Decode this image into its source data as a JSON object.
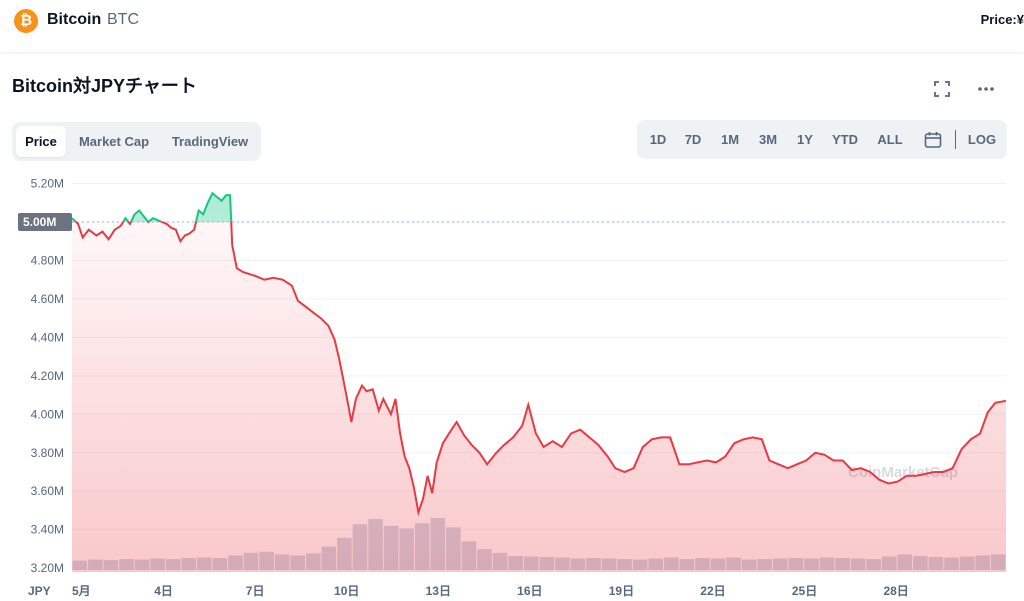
{
  "header": {
    "coin_logo_char": "₿",
    "coin_name": "Bitcoin",
    "coin_symbol": "BTC",
    "price_label": "Price:¥"
  },
  "chart_header": {
    "title": "Bitcoin対JPYチャート"
  },
  "view_tabs": [
    {
      "label": "Price",
      "active": true
    },
    {
      "label": "Market Cap",
      "active": false
    },
    {
      "label": "TradingView",
      "active": false
    }
  ],
  "ranges": [
    "1D",
    "7D",
    "1M",
    "3M",
    "1Y",
    "YTD",
    "ALL",
    "LOG"
  ],
  "colors": {
    "up": "#16c784",
    "down": "#ea3943",
    "baseline_bg": "#6b7280",
    "volume": "#cfd6e4",
    "grid": "#eff2f5"
  },
  "chart_data": {
    "type": "area",
    "currency": "JPY",
    "baseline": 5000000,
    "baseline_label": "5.00M",
    "y_ticks": [
      "5.20M",
      "5.00M",
      "4.80M",
      "4.60M",
      "4.40M",
      "4.20M",
      "4.00M",
      "3.80M",
      "3.60M",
      "3.40M",
      "3.20M"
    ],
    "ylim": [
      3180000,
      5260000
    ],
    "x_ticks": [
      "5月",
      "4日",
      "7日",
      "10日",
      "13日",
      "16日",
      "19日",
      "22日",
      "25日",
      "28日"
    ],
    "x_tick_days": [
      1,
      4,
      7,
      10,
      13,
      16,
      19,
      22,
      25,
      28
    ],
    "xlim": [
      1,
      31.6
    ],
    "watermark": "CoinMarketCap",
    "price_series": [
      [
        1.0,
        5020000
      ],
      [
        1.2,
        4990000
      ],
      [
        1.35,
        4920000
      ],
      [
        1.55,
        4960000
      ],
      [
        1.8,
        4930000
      ],
      [
        2.0,
        4950000
      ],
      [
        2.2,
        4910000
      ],
      [
        2.4,
        4960000
      ],
      [
        2.6,
        4980000
      ],
      [
        2.75,
        5020000
      ],
      [
        2.9,
        4990000
      ],
      [
        3.05,
        5040000
      ],
      [
        3.2,
        5060000
      ],
      [
        3.35,
        5030000
      ],
      [
        3.5,
        5000000
      ],
      [
        3.65,
        5020000
      ],
      [
        3.8,
        5010000
      ],
      [
        3.95,
        5000000
      ],
      [
        4.1,
        4990000
      ],
      [
        4.25,
        4970000
      ],
      [
        4.4,
        4960000
      ],
      [
        4.55,
        4900000
      ],
      [
        4.7,
        4930000
      ],
      [
        4.85,
        4940000
      ],
      [
        5.0,
        4960000
      ],
      [
        5.15,
        5060000
      ],
      [
        5.3,
        5040000
      ],
      [
        5.45,
        5100000
      ],
      [
        5.6,
        5150000
      ],
      [
        5.75,
        5130000
      ],
      [
        5.9,
        5110000
      ],
      [
        6.05,
        5140000
      ],
      [
        6.18,
        5140000
      ],
      [
        6.25,
        4880000
      ],
      [
        6.4,
        4760000
      ],
      [
        6.6,
        4740000
      ],
      [
        6.8,
        4730000
      ],
      [
        7.0,
        4720000
      ],
      [
        7.3,
        4700000
      ],
      [
        7.6,
        4710000
      ],
      [
        7.9,
        4700000
      ],
      [
        8.2,
        4670000
      ],
      [
        8.4,
        4590000
      ],
      [
        8.65,
        4560000
      ],
      [
        8.9,
        4530000
      ],
      [
        9.15,
        4500000
      ],
      [
        9.4,
        4460000
      ],
      [
        9.6,
        4390000
      ],
      [
        9.75,
        4290000
      ],
      [
        9.9,
        4170000
      ],
      [
        10.05,
        4050000
      ],
      [
        10.15,
        3960000
      ],
      [
        10.3,
        4080000
      ],
      [
        10.5,
        4150000
      ],
      [
        10.65,
        4120000
      ],
      [
        10.85,
        4130000
      ],
      [
        11.05,
        4020000
      ],
      [
        11.2,
        4080000
      ],
      [
        11.45,
        4000000
      ],
      [
        11.6,
        4080000
      ],
      [
        11.75,
        3900000
      ],
      [
        11.9,
        3780000
      ],
      [
        12.05,
        3720000
      ],
      [
        12.2,
        3620000
      ],
      [
        12.35,
        3490000
      ],
      [
        12.5,
        3560000
      ],
      [
        12.65,
        3680000
      ],
      [
        12.8,
        3590000
      ],
      [
        12.95,
        3750000
      ],
      [
        13.15,
        3850000
      ],
      [
        13.35,
        3900000
      ],
      [
        13.6,
        3960000
      ],
      [
        13.85,
        3890000
      ],
      [
        14.1,
        3840000
      ],
      [
        14.35,
        3800000
      ],
      [
        14.6,
        3740000
      ],
      [
        14.9,
        3800000
      ],
      [
        15.15,
        3840000
      ],
      [
        15.45,
        3880000
      ],
      [
        15.75,
        3940000
      ],
      [
        15.95,
        4050000
      ],
      [
        16.2,
        3900000
      ],
      [
        16.45,
        3830000
      ],
      [
        16.75,
        3860000
      ],
      [
        17.05,
        3830000
      ],
      [
        17.35,
        3900000
      ],
      [
        17.65,
        3920000
      ],
      [
        17.95,
        3880000
      ],
      [
        18.25,
        3840000
      ],
      [
        18.55,
        3780000
      ],
      [
        18.8,
        3720000
      ],
      [
        19.1,
        3700000
      ],
      [
        19.4,
        3720000
      ],
      [
        19.7,
        3830000
      ],
      [
        20.0,
        3870000
      ],
      [
        20.3,
        3880000
      ],
      [
        20.6,
        3880000
      ],
      [
        20.9,
        3740000
      ],
      [
        21.2,
        3740000
      ],
      [
        21.5,
        3750000
      ],
      [
        21.8,
        3760000
      ],
      [
        22.1,
        3750000
      ],
      [
        22.4,
        3780000
      ],
      [
        22.7,
        3850000
      ],
      [
        23.0,
        3870000
      ],
      [
        23.3,
        3880000
      ],
      [
        23.6,
        3870000
      ],
      [
        23.85,
        3760000
      ],
      [
        24.15,
        3740000
      ],
      [
        24.45,
        3720000
      ],
      [
        24.75,
        3740000
      ],
      [
        25.05,
        3760000
      ],
      [
        25.35,
        3800000
      ],
      [
        25.65,
        3790000
      ],
      [
        25.95,
        3760000
      ],
      [
        26.25,
        3760000
      ],
      [
        26.55,
        3710000
      ],
      [
        26.85,
        3720000
      ],
      [
        27.15,
        3700000
      ],
      [
        27.45,
        3660000
      ],
      [
        27.75,
        3640000
      ],
      [
        28.05,
        3650000
      ],
      [
        28.35,
        3680000
      ],
      [
        28.65,
        3680000
      ],
      [
        28.95,
        3690000
      ],
      [
        29.25,
        3700000
      ],
      [
        29.55,
        3700000
      ],
      [
        29.85,
        3720000
      ],
      [
        30.15,
        3820000
      ],
      [
        30.45,
        3870000
      ],
      [
        30.75,
        3900000
      ],
      [
        31.0,
        4010000
      ],
      [
        31.25,
        4060000
      ],
      [
        31.6,
        4070000
      ]
    ],
    "volume_series": [
      0.18,
      0.2,
      0.19,
      0.21,
      0.2,
      0.22,
      0.21,
      0.23,
      0.24,
      0.23,
      0.28,
      0.33,
      0.35,
      0.3,
      0.28,
      0.32,
      0.45,
      0.62,
      0.88,
      0.98,
      0.85,
      0.8,
      0.9,
      1.0,
      0.82,
      0.55,
      0.4,
      0.33,
      0.27,
      0.26,
      0.25,
      0.24,
      0.22,
      0.23,
      0.22,
      0.21,
      0.2,
      0.22,
      0.24,
      0.21,
      0.23,
      0.22,
      0.24,
      0.2,
      0.21,
      0.22,
      0.23,
      0.22,
      0.24,
      0.23,
      0.22,
      0.21,
      0.26,
      0.3,
      0.27,
      0.25,
      0.24,
      0.26,
      0.28,
      0.3
    ]
  }
}
